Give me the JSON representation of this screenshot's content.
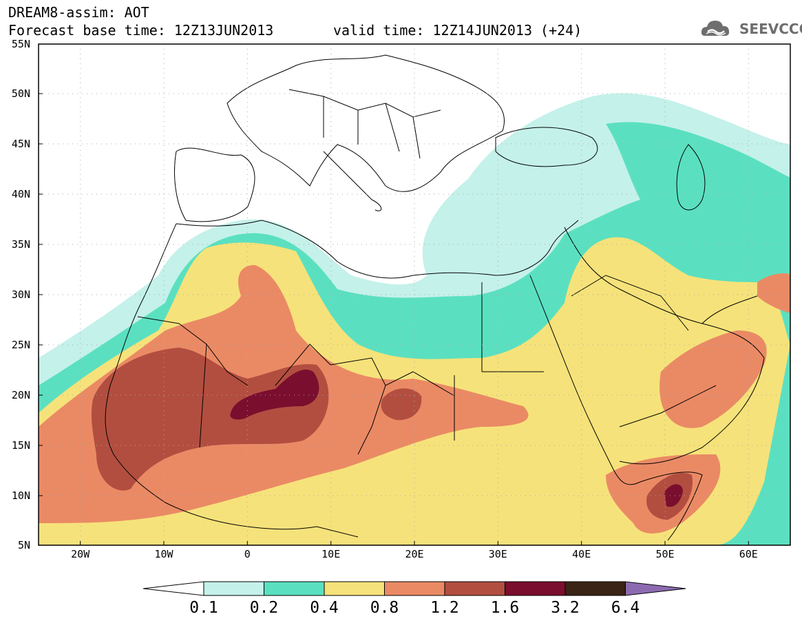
{
  "header": {
    "title": "DREAM8-assim: AOT",
    "base_time": "Forecast base time: 12Z13JUN2013",
    "valid_time": "valid time: 12Z14JUN2013 (+24)"
  },
  "logo": {
    "text": "SEEVCCC",
    "icon": "cloud-logo-icon",
    "color": "#6e6e6e"
  },
  "map": {
    "lon_range": [
      -25,
      65
    ],
    "lat_range": [
      5,
      55
    ],
    "lat_labels": [
      "55N",
      "50N",
      "45N",
      "40N",
      "35N",
      "30N",
      "25N",
      "20N",
      "15N",
      "10N",
      "5N"
    ],
    "lon_labels": [
      "20W",
      "10W",
      "0",
      "10E",
      "20E",
      "30E",
      "40E",
      "50E",
      "60E"
    ]
  },
  "colorbar": {
    "levels": [
      "0.1",
      "0.2",
      "0.4",
      "0.8",
      "1.2",
      "1.6",
      "3.2",
      "6.4"
    ],
    "colors": [
      "#ffffff",
      "#c4f1ea",
      "#5ae0c0",
      "#f6e27a",
      "#ea8a65",
      "#b24e40",
      "#7a0e2e",
      "#3a2415",
      "#8c6ab0"
    ]
  }
}
